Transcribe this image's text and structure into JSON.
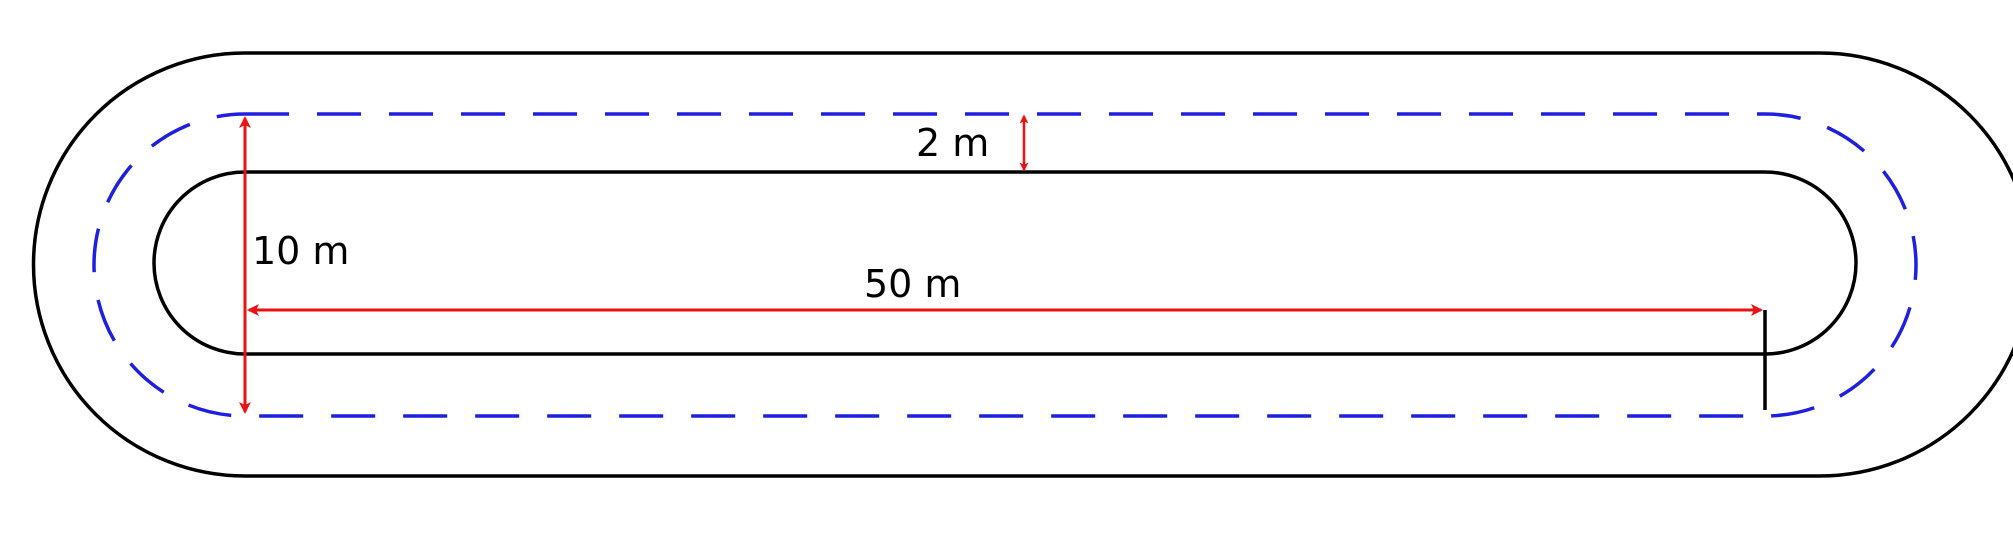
{
  "figure": {
    "labels": {
      "lane_width": "2 m",
      "inner_width": "10 m",
      "straight_length": "50 m"
    },
    "colors": {
      "track_outline": "#000000",
      "running_line": "#1f1fe0",
      "dimension": "#ee1111",
      "background": "#ffffff"
    }
  }
}
